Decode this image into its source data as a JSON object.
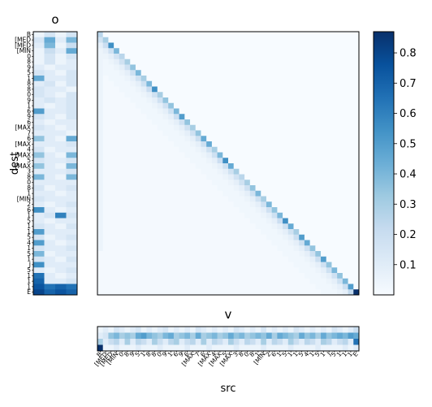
{
  "chart_data": [
    {
      "type": "heatmap",
      "name": "main-attention",
      "title": "",
      "xlabel": "",
      "ylabel": "dest",
      "colormap": "Blues",
      "value_range": [
        0.0,
        0.87
      ],
      "rows": 48,
      "cols": 48,
      "structure": "diagonal",
      "diagonal_values": [
        0.25,
        0.3,
        0.55,
        0.4,
        0.25,
        0.3,
        0.35,
        0.4,
        0.3,
        0.4,
        0.55,
        0.3,
        0.35,
        0.35,
        0.4,
        0.5,
        0.35,
        0.3,
        0.35,
        0.45,
        0.45,
        0.3,
        0.4,
        0.55,
        0.45,
        0.3,
        0.25,
        0.3,
        0.35,
        0.4,
        0.3,
        0.4,
        0.35,
        0.4,
        0.55,
        0.45,
        0.3,
        0.5,
        0.45,
        0.35,
        0.35,
        0.5,
        0.35,
        0.4,
        0.35,
        0.4,
        0.5,
        0.87
      ]
    },
    {
      "type": "heatmap",
      "name": "o",
      "title": "o",
      "rows": 48,
      "cols": 4,
      "values": [
        [
          0.05,
          0.15,
          0.05,
          0.15
        ],
        [
          0.15,
          0.45,
          0.1,
          0.4
        ],
        [
          0.1,
          0.4,
          0.05,
          0.2
        ],
        [
          0.05,
          0.2,
          0.1,
          0.45
        ],
        [
          0.05,
          0.15,
          0.05,
          0.15
        ],
        [
          0.05,
          0.15,
          0.05,
          0.1
        ],
        [
          0.1,
          0.05,
          0.1,
          0.1
        ],
        [
          0.15,
          0.1,
          0.05,
          0.15
        ],
        [
          0.45,
          0.1,
          0.1,
          0.15
        ],
        [
          0.1,
          0.15,
          0.05,
          0.15
        ],
        [
          0.15,
          0.1,
          0.1,
          0.05
        ],
        [
          0.15,
          0.1,
          0.05,
          0.15
        ],
        [
          0.1,
          0.15,
          0.1,
          0.15
        ],
        [
          0.1,
          0.05,
          0.1,
          0.15
        ],
        [
          0.5,
          0.1,
          0.1,
          0.15
        ],
        [
          0.15,
          0.1,
          0.05,
          0.15
        ],
        [
          0.1,
          0.05,
          0.1,
          0.1
        ],
        [
          0.15,
          0.1,
          0.05,
          0.1
        ],
        [
          0.1,
          0.1,
          0.1,
          0.05
        ],
        [
          0.35,
          0.1,
          0.05,
          0.45
        ],
        [
          0.1,
          0.1,
          0.1,
          0.15
        ],
        [
          0.15,
          0.05,
          0.1,
          0.1
        ],
        [
          0.35,
          0.1,
          0.05,
          0.4
        ],
        [
          0.15,
          0.1,
          0.1,
          0.15
        ],
        [
          0.35,
          0.1,
          0.05,
          0.4
        ],
        [
          0.1,
          0.1,
          0.1,
          0.15
        ],
        [
          0.4,
          0.1,
          0.05,
          0.4
        ],
        [
          0.1,
          0.1,
          0.1,
          0.1
        ],
        [
          0.15,
          0.05,
          0.1,
          0.15
        ],
        [
          0.1,
          0.1,
          0.05,
          0.1
        ],
        [
          0.15,
          0.1,
          0.1,
          0.1
        ],
        [
          0.1,
          0.05,
          0.1,
          0.15
        ],
        [
          0.55,
          0.1,
          0.05,
          0.1
        ],
        [
          0.1,
          0.15,
          0.6,
          0.15
        ],
        [
          0.1,
          0.05,
          0.1,
          0.1
        ],
        [
          0.15,
          0.1,
          0.05,
          0.15
        ],
        [
          0.5,
          0.1,
          0.1,
          0.1
        ],
        [
          0.15,
          0.05,
          0.1,
          0.15
        ],
        [
          0.5,
          0.1,
          0.05,
          0.1
        ],
        [
          0.15,
          0.1,
          0.1,
          0.15
        ],
        [
          0.4,
          0.05,
          0.1,
          0.1
        ],
        [
          0.15,
          0.1,
          0.05,
          0.15
        ],
        [
          0.55,
          0.1,
          0.1,
          0.1
        ],
        [
          0.1,
          0.05,
          0.1,
          0.15
        ],
        [
          0.65,
          0.1,
          0.05,
          0.1
        ],
        [
          0.7,
          0.1,
          0.1,
          0.15
        ],
        [
          0.75,
          0.65,
          0.7,
          0.65
        ],
        [
          0.8,
          0.7,
          0.75,
          0.7
        ]
      ]
    },
    {
      "type": "heatmap",
      "name": "v",
      "title": "v",
      "xlabel": "src",
      "rows": 4,
      "cols": 48,
      "values": [
        [
          0.05,
          0.1,
          0.05,
          0.15,
          0.1,
          0.05,
          0.1,
          0.15,
          0.05,
          0.1,
          0.05,
          0.1,
          0.15,
          0.05,
          0.1,
          0.05,
          0.1,
          0.05,
          0.15,
          0.1,
          0.05,
          0.1,
          0.05,
          0.1,
          0.05,
          0.15,
          0.1,
          0.05,
          0.1,
          0.05,
          0.15,
          0.05,
          0.1,
          0.05,
          0.1,
          0.05,
          0.15,
          0.1,
          0.05,
          0.1,
          0.05,
          0.1,
          0.05,
          0.15,
          0.1,
          0.05,
          0.1,
          0.2
        ],
        [
          0.1,
          0.15,
          0.35,
          0.4,
          0.3,
          0.35,
          0.3,
          0.45,
          0.5,
          0.4,
          0.35,
          0.3,
          0.4,
          0.45,
          0.3,
          0.35,
          0.4,
          0.3,
          0.45,
          0.3,
          0.35,
          0.4,
          0.3,
          0.35,
          0.45,
          0.35,
          0.4,
          0.3,
          0.35,
          0.4,
          0.35,
          0.45,
          0.3,
          0.45,
          0.4,
          0.35,
          0.3,
          0.45,
          0.35,
          0.4,
          0.3,
          0.45,
          0.35,
          0.4,
          0.45,
          0.4,
          0.5,
          0.45
        ],
        [
          0.3,
          0.1,
          0.2,
          0.25,
          0.1,
          0.3,
          0.1,
          0.25,
          0.2,
          0.1,
          0.3,
          0.2,
          0.1,
          0.25,
          0.3,
          0.1,
          0.2,
          0.25,
          0.1,
          0.3,
          0.1,
          0.25,
          0.2,
          0.1,
          0.3,
          0.2,
          0.1,
          0.25,
          0.2,
          0.1,
          0.3,
          0.1,
          0.25,
          0.2,
          0.1,
          0.3,
          0.2,
          0.1,
          0.25,
          0.2,
          0.1,
          0.3,
          0.25,
          0.1,
          0.2,
          0.25,
          0.1,
          0.65
        ],
        [
          0.87,
          0.05,
          0.05,
          0.1,
          0.05,
          0.05,
          0.05,
          0.1,
          0.05,
          0.05,
          0.05,
          0.1,
          0.05,
          0.05,
          0.05,
          0.05,
          0.1,
          0.05,
          0.05,
          0.05,
          0.1,
          0.05,
          0.05,
          0.05,
          0.05,
          0.1,
          0.05,
          0.05,
          0.05,
          0.05,
          0.1,
          0.05,
          0.05,
          0.05,
          0.05,
          0.1,
          0.05,
          0.05,
          0.05,
          0.05,
          0.1,
          0.05,
          0.05,
          0.05,
          0.05,
          0.1,
          0.05,
          0.1
        ]
      ]
    }
  ],
  "tokens": [
    "B",
    "[MED",
    "[MED",
    "[MIN",
    "0",
    "8",
    "9",
    "5",
    "1",
    "8",
    "8",
    "0",
    "9",
    "1",
    "6",
    "9",
    "6",
    "[MAX",
    "7",
    "6",
    "[MAX",
    "4",
    "[MAX",
    "5",
    "[MAX",
    "3",
    "8",
    "0",
    "8",
    "1",
    "[MIN",
    "2",
    "6",
    "1",
    "5",
    "1",
    "1",
    "5",
    "4",
    "1",
    "5",
    "1",
    "J",
    "5",
    "1",
    "1",
    "1",
    "E"
  ],
  "colorbar": {
    "ticks": [
      0.1,
      0.2,
      0.3,
      0.4,
      0.5,
      0.6,
      0.7,
      0.8
    ],
    "tick_labels": [
      "0.1",
      "0.2",
      "0.3",
      "0.4",
      "0.5",
      "0.6",
      "0.7",
      "0.8"
    ],
    "min": 0.0,
    "max": 0.87
  },
  "labels": {
    "o_title": "o",
    "v_title": "v",
    "ylabel": "dest",
    "xlabel": "src"
  }
}
